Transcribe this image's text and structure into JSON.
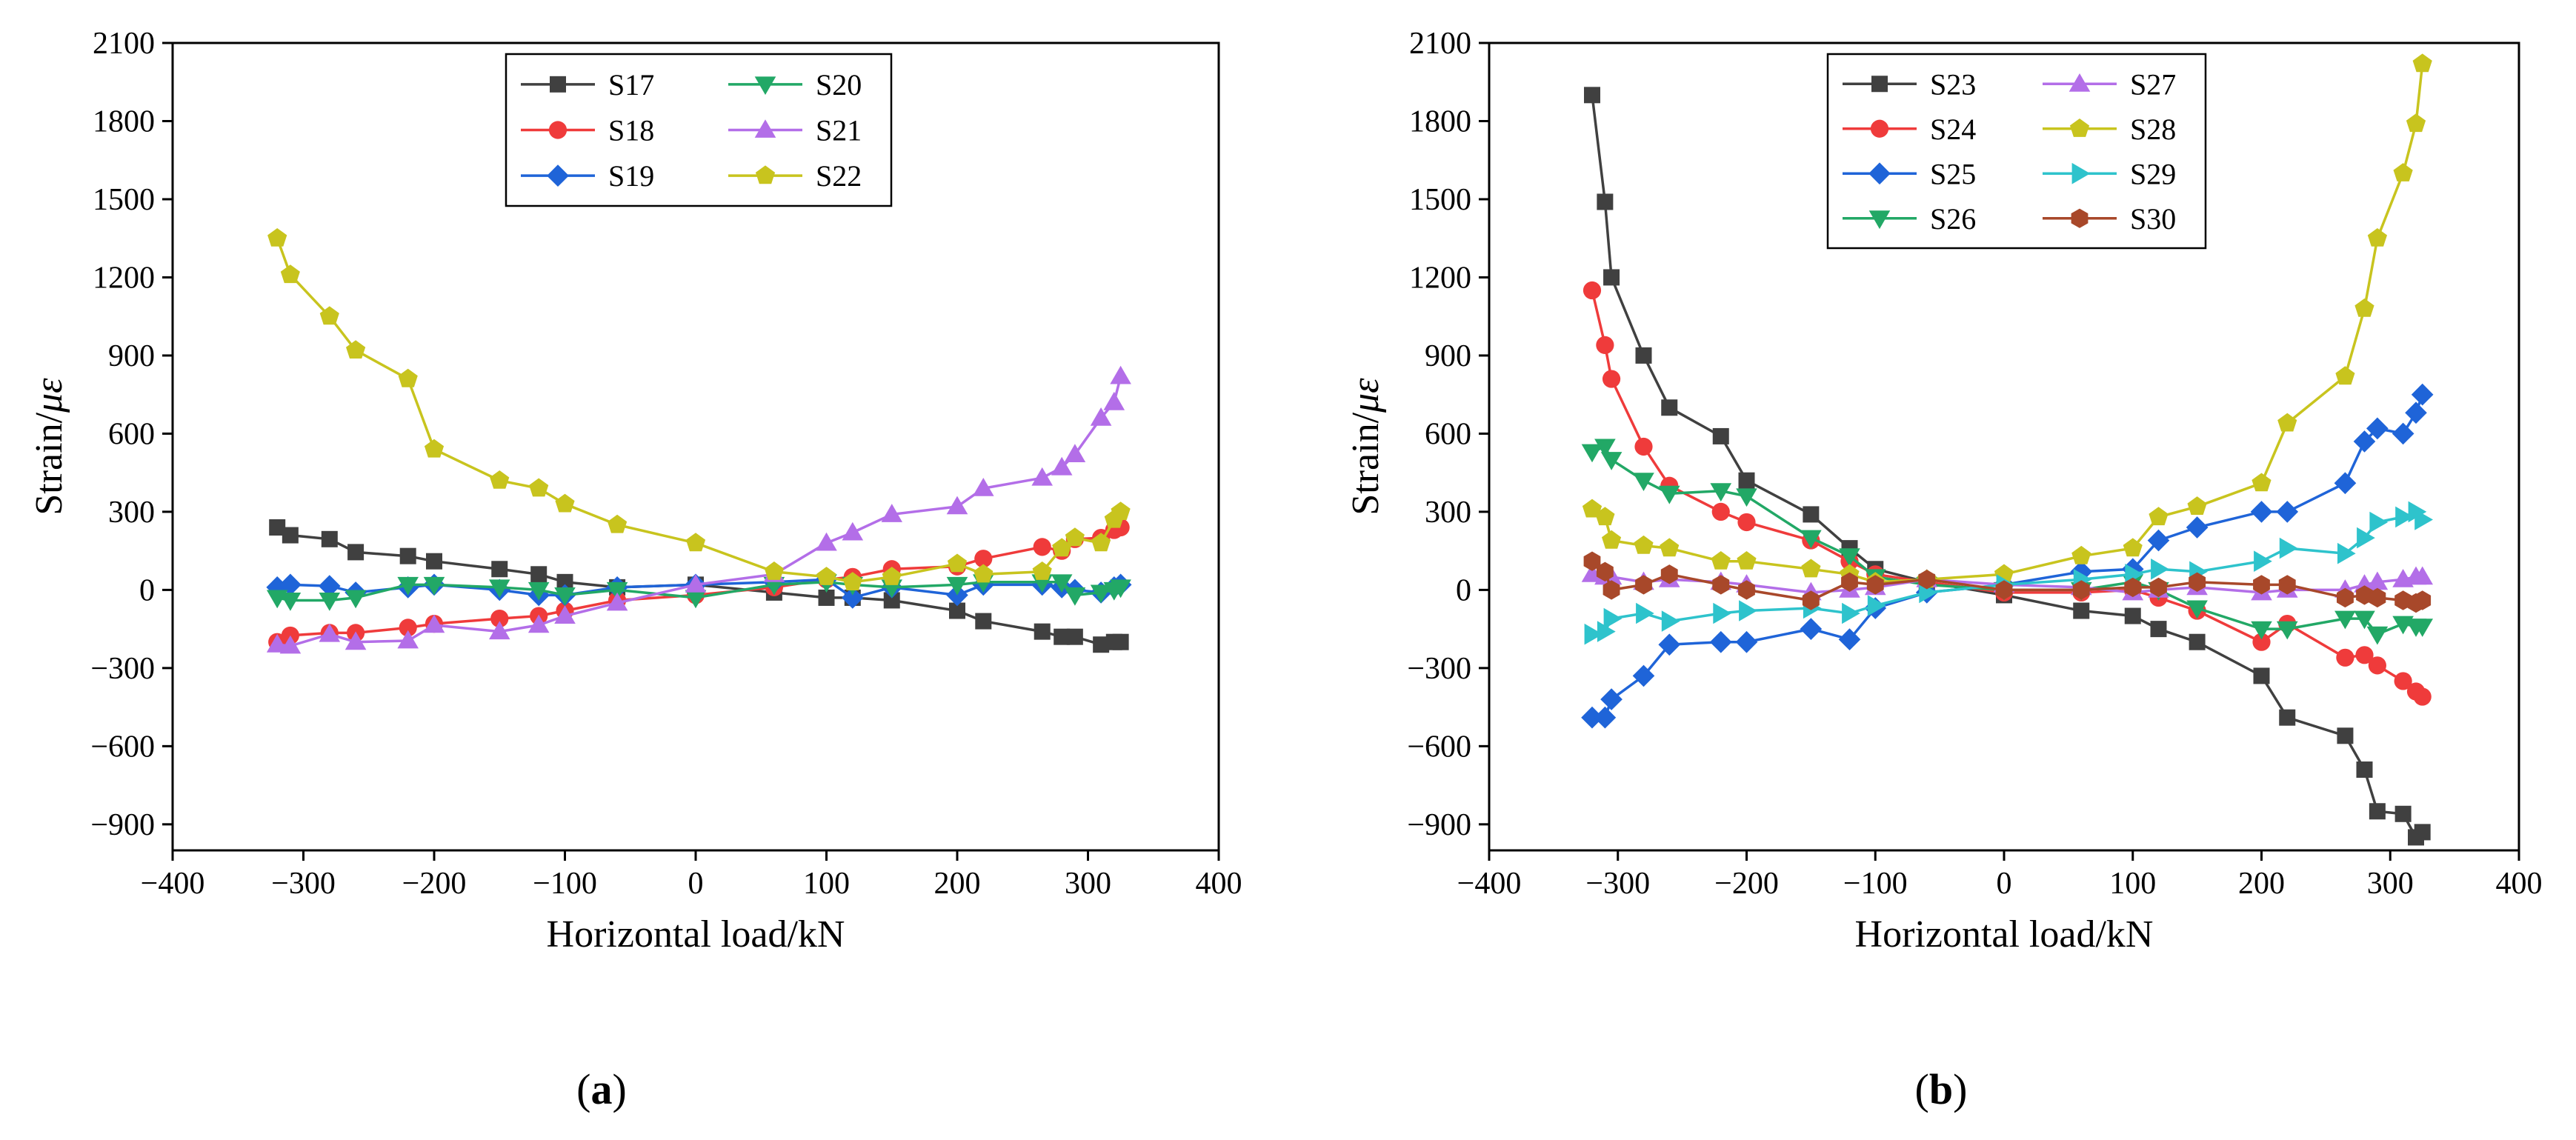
{
  "chart_data": [
    {
      "type": "line",
      "panel_label": "a",
      "xlabel": "Horizontal load/kN",
      "ylabel_main": "Strain/",
      "ylabel_unit": "με",
      "xlim": [
        -400,
        400
      ],
      "ylim": [
        -1000,
        2100
      ],
      "xticks": [
        -400,
        -300,
        -200,
        -100,
        0,
        100,
        200,
        300,
        400
      ],
      "xtick_labels": [
        "−400",
        "−300",
        "−200",
        "−100",
        "0",
        "100",
        "200",
        "300",
        "400"
      ],
      "yticks": [
        -900,
        -600,
        -300,
        0,
        300,
        600,
        900,
        1200,
        1500,
        1800,
        2100
      ],
      "ytick_labels": [
        "−900",
        "−600",
        "−300",
        "0",
        "300",
        "600",
        "900",
        "1200",
        "1500",
        "1800",
        "2100"
      ],
      "legend_position": "top-center",
      "x": [
        -320,
        -310,
        -280,
        -260,
        -220,
        -200,
        -150,
        -120,
        -100,
        -60,
        0,
        60,
        100,
        120,
        150,
        200,
        220,
        265,
        280,
        290,
        310,
        320,
        325
      ],
      "series": [
        {
          "name": "S17",
          "color": "#404040",
          "marker": "square",
          "values": [
            240,
            210,
            195,
            145,
            130,
            110,
            80,
            60,
            30,
            10,
            20,
            -10,
            -30,
            -30,
            -40,
            -80,
            -120,
            -160,
            -180,
            -180,
            -210,
            -200,
            -200
          ]
        },
        {
          "name": "S18",
          "color": "#ef3b3b",
          "marker": "circle",
          "values": [
            -200,
            -175,
            -165,
            -165,
            -145,
            -130,
            -110,
            -100,
            -80,
            -40,
            -20,
            10,
            40,
            50,
            80,
            90,
            120,
            165,
            150,
            195,
            200,
            230,
            240
          ]
        },
        {
          "name": "S19",
          "color": "#1f64d8",
          "marker": "diamond",
          "values": [
            10,
            20,
            15,
            -10,
            10,
            20,
            0,
            -20,
            -20,
            10,
            20,
            30,
            40,
            -30,
            10,
            -20,
            20,
            20,
            10,
            0,
            -10,
            10,
            20
          ]
        },
        {
          "name": "S20",
          "color": "#22a866",
          "marker": "triangle-down",
          "values": [
            -30,
            -40,
            -40,
            -30,
            20,
            20,
            10,
            0,
            -20,
            0,
            -30,
            20,
            30,
            20,
            10,
            20,
            30,
            30,
            30,
            -20,
            -10,
            0,
            10
          ]
        },
        {
          "name": "S21",
          "color": "#b36ee8",
          "marker": "triangle-up",
          "values": [
            -210,
            -215,
            -170,
            -200,
            -195,
            -135,
            -160,
            -135,
            -100,
            -50,
            20,
            60,
            180,
            220,
            290,
            320,
            390,
            430,
            470,
            520,
            660,
            720,
            820
          ]
        },
        {
          "name": "S22",
          "color": "#c8c41e",
          "marker": "pentagon",
          "values": [
            1350,
            1210,
            1050,
            920,
            810,
            540,
            420,
            390,
            330,
            250,
            180,
            70,
            50,
            30,
            50,
            100,
            60,
            70,
            160,
            200,
            180,
            270,
            300
          ]
        }
      ]
    },
    {
      "type": "line",
      "panel_label": "b",
      "xlabel": "Horizontal load/kN",
      "ylabel_main": "Strain/",
      "ylabel_unit": "με",
      "xlim": [
        -400,
        400
      ],
      "ylim": [
        -1000,
        2100
      ],
      "xticks": [
        -400,
        -300,
        -200,
        -100,
        0,
        100,
        200,
        300,
        400
      ],
      "xtick_labels": [
        "−400",
        "−300",
        "−200",
        "−100",
        "0",
        "100",
        "200",
        "300",
        "400"
      ],
      "yticks": [
        -900,
        -600,
        -300,
        0,
        300,
        600,
        900,
        1200,
        1500,
        1800,
        2100
      ],
      "ytick_labels": [
        "−900",
        "−600",
        "−300",
        "0",
        "300",
        "600",
        "900",
        "1200",
        "1500",
        "1800",
        "2100"
      ],
      "legend_position": "top-left",
      "x": [
        -320,
        -310,
        -305,
        -280,
        -260,
        -220,
        -200,
        -150,
        -120,
        -100,
        -60,
        0,
        60,
        100,
        120,
        150,
        200,
        220,
        265,
        280,
        290,
        310,
        320,
        325
      ],
      "series": [
        {
          "name": "S23",
          "color": "#404040",
          "marker": "square",
          "values": [
            1900,
            1490,
            1200,
            900,
            700,
            590,
            420,
            290,
            160,
            80,
            30,
            -20,
            -80,
            -100,
            -150,
            -200,
            -330,
            -490,
            -560,
            -690,
            -850,
            -860,
            -950,
            -930
          ]
        },
        {
          "name": "S24",
          "color": "#ef3b3b",
          "marker": "circle",
          "values": [
            1150,
            940,
            810,
            550,
            400,
            300,
            260,
            190,
            110,
            60,
            30,
            -10,
            -10,
            0,
            -30,
            -80,
            -200,
            -130,
            -260,
            -250,
            -290,
            -350,
            -390,
            -410
          ]
        },
        {
          "name": "S25",
          "color": "#1f64d8",
          "marker": "diamond",
          "values": [
            -490,
            -490,
            -420,
            -330,
            -210,
            -200,
            -200,
            -150,
            -190,
            -70,
            -10,
            20,
            70,
            80,
            190,
            240,
            300,
            300,
            410,
            570,
            620,
            600,
            680,
            750
          ]
        },
        {
          "name": "S26",
          "color": "#22a866",
          "marker": "triangle-down",
          "values": [
            530,
            550,
            500,
            420,
            370,
            380,
            360,
            200,
            130,
            50,
            20,
            0,
            0,
            30,
            0,
            -70,
            -150,
            -150,
            -110,
            -110,
            -170,
            -130,
            -140,
            -140
          ]
        },
        {
          "name": "S27",
          "color": "#b36ee8",
          "marker": "triangle-up",
          "values": [
            60,
            50,
            50,
            30,
            40,
            30,
            20,
            -10,
            0,
            10,
            40,
            20,
            10,
            -10,
            0,
            10,
            -10,
            0,
            0,
            20,
            30,
            40,
            50,
            50
          ]
        },
        {
          "name": "S28",
          "color": "#c8c41e",
          "marker": "pentagon",
          "values": [
            310,
            280,
            190,
            170,
            160,
            110,
            110,
            80,
            60,
            30,
            40,
            60,
            130,
            160,
            280,
            320,
            410,
            640,
            820,
            1080,
            1350,
            1600,
            1790,
            2020
          ]
        },
        {
          "name": "S29",
          "color": "#2ec3cc",
          "marker": "triangle-right",
          "values": [
            -170,
            -160,
            -110,
            -90,
            -120,
            -90,
            -80,
            -70,
            -90,
            -60,
            -10,
            20,
            40,
            60,
            80,
            70,
            110,
            160,
            140,
            200,
            260,
            280,
            300,
            270
          ]
        },
        {
          "name": "S30",
          "color": "#a8482a",
          "marker": "hexagon",
          "values": [
            110,
            70,
            0,
            20,
            60,
            20,
            0,
            -40,
            30,
            20,
            40,
            0,
            0,
            10,
            10,
            30,
            20,
            20,
            -30,
            -20,
            -30,
            -40,
            -50,
            -40
          ]
        }
      ]
    }
  ]
}
